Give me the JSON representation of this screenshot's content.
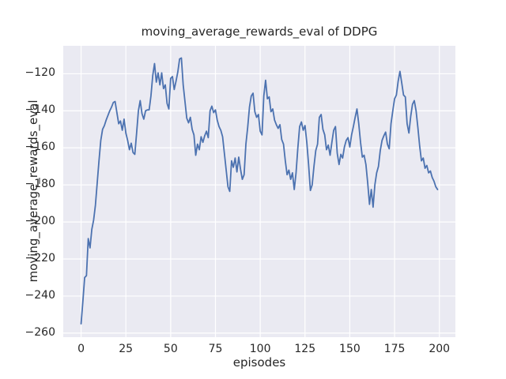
{
  "figure": {
    "title": "moving_average_rewards_eval of DDPG"
  },
  "chart_data": {
    "type": "line",
    "title": "moving_average_rewards_eval of DDPG",
    "xlabel": "episodes",
    "ylabel": "moving_average_rewards_eval",
    "xlim": [
      -9.95,
      208.95
    ],
    "ylim": [
      -262.2,
      -104.9
    ],
    "xticks": [
      0,
      25,
      50,
      75,
      100,
      125,
      150,
      175,
      200
    ],
    "yticks": [
      -120,
      -140,
      -160,
      -180,
      -200,
      -220,
      -240,
      -260
    ],
    "grid": true,
    "legend": false,
    "style": {
      "axes_background": "#eaeaf2",
      "grid_color": "#ffffff",
      "text_color": "#262626",
      "line_color": "#4c72b0",
      "line_width": 1.8
    },
    "series": [
      {
        "name": "moving_average_rewards_eval",
        "color": "#4c72b0",
        "x": [
          0,
          1,
          2,
          3,
          4,
          5,
          6,
          7,
          8,
          9,
          10,
          11,
          12,
          13,
          14,
          15,
          16,
          17,
          18,
          19,
          20,
          21,
          22,
          23,
          24,
          25,
          26,
          27,
          28,
          29,
          30,
          31,
          32,
          33,
          34,
          35,
          36,
          37,
          38,
          39,
          40,
          41,
          42,
          43,
          44,
          45,
          46,
          47,
          48,
          49,
          50,
          51,
          52,
          53,
          54,
          55,
          56,
          57,
          58,
          59,
          60,
          61,
          62,
          63,
          64,
          65,
          66,
          67,
          68,
          69,
          70,
          71,
          72,
          73,
          74,
          75,
          76,
          77,
          78,
          79,
          80,
          81,
          82,
          83,
          84,
          85,
          86,
          87,
          88,
          89,
          90,
          91,
          92,
          93,
          94,
          95,
          96,
          97,
          98,
          99,
          100,
          101,
          102,
          103,
          104,
          105,
          106,
          107,
          108,
          109,
          110,
          111,
          112,
          113,
          114,
          115,
          116,
          117,
          118,
          119,
          120,
          121,
          122,
          123,
          124,
          125,
          126,
          127,
          128,
          129,
          130,
          131,
          132,
          133,
          134,
          135,
          136,
          137,
          138,
          139,
          140,
          141,
          142,
          143,
          144,
          145,
          146,
          147,
          148,
          149,
          150,
          151,
          152,
          153,
          154,
          155,
          156,
          157,
          158,
          159,
          160,
          161,
          162,
          163,
          164,
          165,
          166,
          167,
          168,
          169,
          170,
          171,
          172,
          173,
          174,
          175,
          176,
          177,
          178,
          179,
          180,
          181,
          182,
          183,
          184,
          185,
          186,
          187,
          188,
          189,
          190,
          191,
          192,
          193,
          194,
          195,
          196,
          197,
          198,
          199
        ],
        "y": [
          -255,
          -243,
          -230,
          -229,
          -209,
          -214,
          -204,
          -199,
          -191,
          -179,
          -167,
          -156,
          -150,
          -148,
          -145,
          -142.5,
          -140,
          -138,
          -135.5,
          -135,
          -141,
          -147,
          -145.5,
          -150.5,
          -144.5,
          -152,
          -156,
          -161,
          -157.5,
          -162.5,
          -163.5,
          -152,
          -140,
          -134.5,
          -141.5,
          -144.5,
          -140,
          -139.5,
          -139.5,
          -132,
          -121,
          -114.5,
          -124.5,
          -119.5,
          -126,
          -119.5,
          -128,
          -126,
          -136,
          -139,
          -122.5,
          -121.5,
          -128.5,
          -124,
          -119,
          -112,
          -111.5,
          -126,
          -135,
          -144,
          -146.5,
          -143.5,
          -150,
          -153,
          -164,
          -158,
          -161,
          -154,
          -157,
          -153.5,
          -151,
          -154.5,
          -140,
          -137.5,
          -141,
          -139.5,
          -145,
          -148.5,
          -150.5,
          -154,
          -163,
          -172,
          -181,
          -183.5,
          -167,
          -170.5,
          -165.5,
          -173,
          -165,
          -171.5,
          -177,
          -174.5,
          -158,
          -149,
          -138,
          -132,
          -130.5,
          -140.5,
          -143.5,
          -142,
          -151,
          -153,
          -132,
          -123.5,
          -133.5,
          -132.5,
          -140.5,
          -139,
          -145,
          -147.5,
          -149.5,
          -147.5,
          -155.5,
          -158,
          -167,
          -174.5,
          -172,
          -177,
          -173.5,
          -182.5,
          -173.5,
          -160,
          -148.5,
          -146,
          -150.5,
          -148,
          -157,
          -169,
          -183,
          -180,
          -170,
          -161.5,
          -158,
          -143.5,
          -142,
          -150,
          -153,
          -161,
          -158.5,
          -164,
          -157,
          -150.5,
          -148.5,
          -163,
          -169,
          -163.5,
          -165.5,
          -159.5,
          -156,
          -154.5,
          -159.5,
          -153,
          -148.5,
          -143.5,
          -139,
          -147,
          -157,
          -165,
          -164,
          -169,
          -179,
          -190.5,
          -182.5,
          -192,
          -180,
          -173.5,
          -170,
          -161.5,
          -156,
          -153.5,
          -151.5,
          -158,
          -160.5,
          -147,
          -140,
          -133.5,
          -131.5,
          -124,
          -118.7,
          -125,
          -131.5,
          -132.5,
          -147,
          -152,
          -143,
          -136.5,
          -134.5,
          -140,
          -149,
          -159,
          -167,
          -165.5,
          -171,
          -169.5,
          -173.5,
          -172.5,
          -176,
          -178,
          -181,
          -182.5
        ]
      }
    ]
  }
}
